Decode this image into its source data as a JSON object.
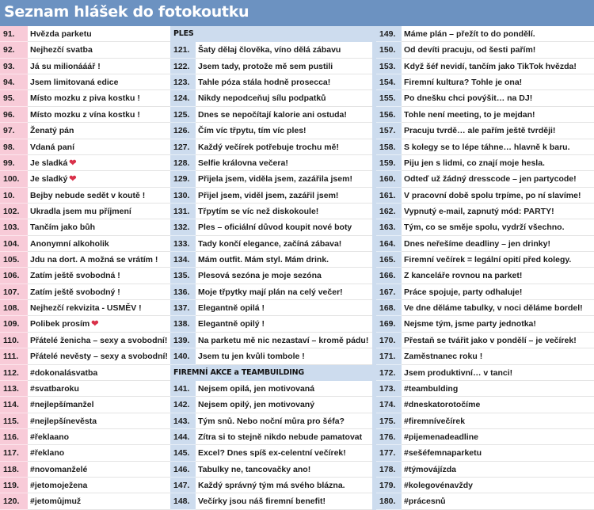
{
  "title": "Seznam hlášek do fotokoutku",
  "colors": {
    "title_bg": "#6c92c1",
    "pink": "#f8cbd8",
    "light_blue": "#cddcee",
    "heart": "#d9314a"
  },
  "column1": [
    {
      "n": "91.",
      "t": "Hvězda parketu"
    },
    {
      "n": "92.",
      "t": "Nejhezčí svatba"
    },
    {
      "n": "93.",
      "t": "Já su milionááář !"
    },
    {
      "n": "94.",
      "t": "Jsem limitovaná edice"
    },
    {
      "n": "95.",
      "t": "Místo mozku z piva kostku !"
    },
    {
      "n": "96.",
      "t": "Místo mozku z vína kostku !"
    },
    {
      "n": "97.",
      "t": "Ženatý pán"
    },
    {
      "n": "98.",
      "t": "Vdaná paní"
    },
    {
      "n": "99.",
      "t": "Je sladká",
      "icon": "heart-icon"
    },
    {
      "n": "100.",
      "t": "Je sladký",
      "icon": "heart-icon"
    },
    {
      "n": "10.",
      "t": "Bejby nebude sedět v koutě !"
    },
    {
      "n": "102.",
      "t": "Ukradla jsem mu příjmení"
    },
    {
      "n": "103.",
      "t": "Tančím jako bůh"
    },
    {
      "n": "104.",
      "t": "Anonymní alkoholik"
    },
    {
      "n": "105.",
      "t": "Jdu na dort. A možná se vrátím !"
    },
    {
      "n": "106.",
      "t": "Zatím ještě svobodná !"
    },
    {
      "n": "107.",
      "t": "Zatím ještě svobodný !"
    },
    {
      "n": "108.",
      "t": "Nejhezčí rekvizita - USMĚV !"
    },
    {
      "n": "109.",
      "t": "Polibek prosím",
      "icon": "heart-icon"
    },
    {
      "n": "110.",
      "t": "Přátelé ženicha – sexy a svobodní!"
    },
    {
      "n": "111.",
      "t": "Přátelé nevěsty – sexy a svobodní!"
    },
    {
      "n": "112.",
      "t": "#dokonalásvatba"
    },
    {
      "n": "113.",
      "t": "#svatbaroku"
    },
    {
      "n": "114.",
      "t": "#nejlepšímanžel"
    },
    {
      "n": "115.",
      "t": "#nejlepšínevěsta"
    },
    {
      "n": "116.",
      "t": "#řeklaano"
    },
    {
      "n": "117.",
      "t": "#řeklano"
    },
    {
      "n": "118.",
      "t": "#novomanželé"
    },
    {
      "n": "119.",
      "t": "#jetomoježena"
    },
    {
      "n": "120.",
      "t": "#jetomůjmuž"
    }
  ],
  "column2": [
    {
      "section": "PLES"
    },
    {
      "n": "121.",
      "t": "Šaty dělaj člověka, víno dělá zábavu"
    },
    {
      "n": "122.",
      "t": "Jsem tady, protože mě sem pustili"
    },
    {
      "n": "123.",
      "t": "Tahle póza stála hodně prosecca!"
    },
    {
      "n": "124.",
      "t": "Nikdy nepodceňuj sílu podpatků"
    },
    {
      "n": "125.",
      "t": "Dnes se nepočítají kalorie ani ostuda!"
    },
    {
      "n": "126.",
      "t": "Čím víc třpytu, tím víc ples!"
    },
    {
      "n": "127.",
      "t": "Každý večírek potřebuje trochu mě!"
    },
    {
      "n": "128.",
      "t": "Selfie královna večera!"
    },
    {
      "n": "129.",
      "t": "Přijela jsem, viděla jsem, zazářila jsem!"
    },
    {
      "n": "130.",
      "t": "Přijel jsem, viděl jsem, zazářil jsem!"
    },
    {
      "n": "131.",
      "t": "Třpytím se víc než diskokoule!"
    },
    {
      "n": "132.",
      "t": "Ples – oficiální důvod koupit nové boty"
    },
    {
      "n": "133.",
      "t": "Tady končí elegance, začíná zábava!"
    },
    {
      "n": "134.",
      "t": "Mám outfit. Mám styl. Mám drink."
    },
    {
      "n": "135.",
      "t": "Plesová sezóna je moje sezóna"
    },
    {
      "n": "136.",
      "t": "Moje třpytky mají plán na celý večer!"
    },
    {
      "n": "137.",
      "t": "Elegantně opilá !"
    },
    {
      "n": "138.",
      "t": "Elegantně opilý !"
    },
    {
      "n": "139.",
      "t": "Na parketu mě nic nezastaví – kromě pádu!"
    },
    {
      "n": "140.",
      "t": "Jsem tu jen kvůli tombole !"
    },
    {
      "section": "FIREMNÍ AKCE a TEAMBUILDING"
    },
    {
      "n": "141.",
      "t": "Nejsem opilá, jen motivovaná"
    },
    {
      "n": "142.",
      "t": "Nejsem opilý, jen motivovaný"
    },
    {
      "n": "143.",
      "t": "Tým snů. Nebo noční můra pro šéfa?"
    },
    {
      "n": "144.",
      "t": "Zítra si to stejně nikdo nebude pamatovat"
    },
    {
      "n": "145.",
      "t": "Excel? Dnes spíš ex-celentní večírek!"
    },
    {
      "n": "146.",
      "t": "Tabulky ne, tancovačky ano!"
    },
    {
      "n": "147.",
      "t": "Každý správný tým má svého blázna."
    },
    {
      "n": "148.",
      "t": "Večírky jsou náš firemní benefit!"
    }
  ],
  "column3": [
    {
      "n": "149.",
      "t": "Máme plán – přežít to do pondělí."
    },
    {
      "n": "150.",
      "t": "Od devíti pracuju, od šesti pařím!"
    },
    {
      "n": "153.",
      "t": "Když šéf nevidí, tančím jako TikTok hvězda!"
    },
    {
      "n": "154.",
      "t": "Firemní kultura? Tohle je ona!"
    },
    {
      "n": "155.",
      "t": "Po dnešku chci povýšit… na DJ!"
    },
    {
      "n": "156.",
      "t": "Tohle není meeting, to je mejdan!"
    },
    {
      "n": "157.",
      "t": "Pracuju tvrdě… ale pařím ještě tvrději!"
    },
    {
      "n": "158.",
      "t": "S kolegy se to lépe táhne… hlavně k baru."
    },
    {
      "n": "159.",
      "t": "Piju jen s lidmi, co znají moje hesla."
    },
    {
      "n": "160.",
      "t": "Odteď už žádný dresscode – jen partycode!"
    },
    {
      "n": "161.",
      "t": "V pracovní době spolu trpíme, po ní slavíme!"
    },
    {
      "n": "162.",
      "t": "Vypnutý e-mail, zapnutý mód: PARTY!"
    },
    {
      "n": "163.",
      "t": "Tým, co se směje spolu, vydrží všechno."
    },
    {
      "n": "164.",
      "t": "Dnes neřešíme deadliny – jen drinky!"
    },
    {
      "n": "165.",
      "t": "Firemní večírek = legální opití před kolegy."
    },
    {
      "n": "166.",
      "t": "Z kanceláře rovnou na parket!"
    },
    {
      "n": "167.",
      "t": "Práce spojuje, party odhaluje!"
    },
    {
      "n": "168.",
      "t": "Ve dne děláme tabulky, v noci děláme bordel!"
    },
    {
      "n": "169.",
      "t": "Nejsme tým, jsme party jednotka!"
    },
    {
      "n": "170.",
      "t": "Přestaň se tvářit jako v pondělí – je večírek!"
    },
    {
      "n": "171.",
      "t": "Zaměstnanec roku !"
    },
    {
      "n": "172.",
      "t": "Jsem produktivní… v tanci!"
    },
    {
      "n": "173.",
      "t": "#teambulding"
    },
    {
      "n": "174.",
      "t": "#dneskatorotočíme"
    },
    {
      "n": "175.",
      "t": "#firemnívečírek"
    },
    {
      "n": "176.",
      "t": "#pijemenadeadline"
    },
    {
      "n": "177.",
      "t": "#sešéfemnaparketu"
    },
    {
      "n": "178.",
      "t": "#týmovájízda"
    },
    {
      "n": "179.",
      "t": "#kolegovénavždy"
    },
    {
      "n": "180.",
      "t": "#prácesnů"
    }
  ]
}
